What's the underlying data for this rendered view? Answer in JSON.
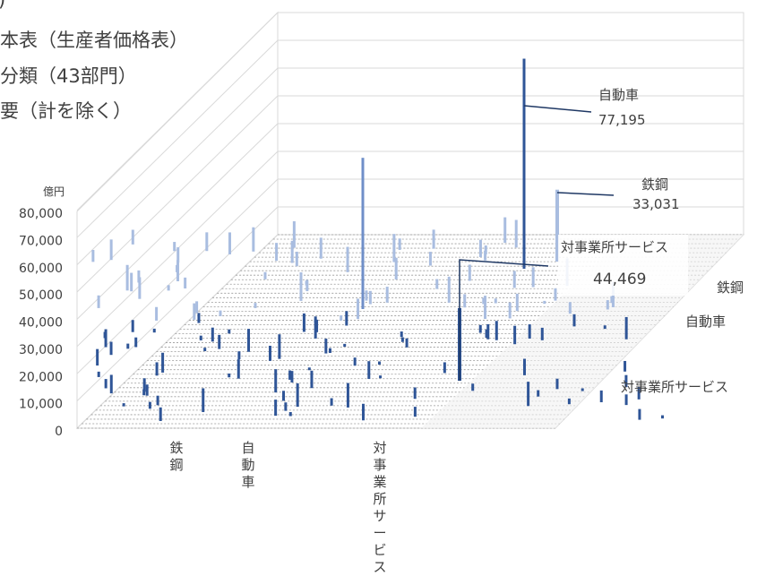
{
  "title_lines": [
    "本表（生産者価格表）",
    "分類（43部門）",
    "要（計を除く）"
  ],
  "title_fragment": ")",
  "chart_data": {
    "type": "bar",
    "subtype": "3d-column",
    "unit": "億円",
    "ylim": [
      0,
      80000
    ],
    "y_ticks": [
      "80,000",
      "70,000",
      "60,000",
      "50,000",
      "40,000",
      "30,000",
      "20,000",
      "10,000",
      "0"
    ],
    "x_categories": [
      "鉄鋼",
      "自動車",
      "対事業所サービス"
    ],
    "depth_categories": [
      "鉄鋼",
      "自動車",
      "対事業所サービス"
    ],
    "annotations": [
      {
        "label": "自動車",
        "value": "77,195",
        "raw": 77195
      },
      {
        "label": "鉄鋼",
        "value": "33,031",
        "raw": 33031
      },
      {
        "label": "対事業所サービス",
        "value": "44,469",
        "raw": 44469
      }
    ],
    "grid": true,
    "colors": {
      "front": "#2f5597",
      "back": "#a9bde0",
      "grid": "#d9d9d9",
      "wall": "#f2f2f2"
    }
  }
}
